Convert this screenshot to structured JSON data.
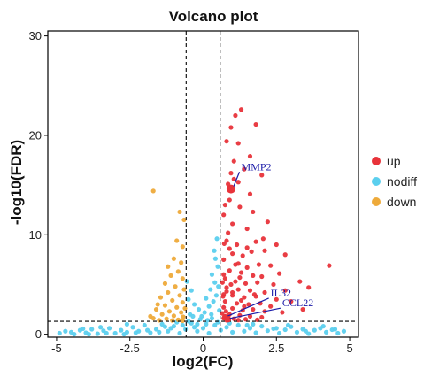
{
  "chart_data": {
    "type": "scatter",
    "title": "Volcano plot",
    "xlabel": "log2(FC)",
    "ylabel": "-log10(FDR)",
    "xlim": [
      -5.3,
      5.3
    ],
    "ylim": [
      -0.3,
      30.5
    ],
    "x_ticks": [
      -5,
      -2.5,
      0,
      2.5,
      5
    ],
    "x_tick_labels": [
      "-5",
      "-2.5",
      "0",
      "2.5",
      "5"
    ],
    "y_ticks": [
      0,
      10,
      20,
      30
    ],
    "y_tick_labels": [
      "0",
      "10",
      "20",
      "30"
    ],
    "grid": false,
    "legend_position": "right",
    "thresholds": {
      "log2fc": [
        -0.58,
        0.58
      ],
      "neg_log10_fdr": 1.3
    },
    "colors": {
      "up": "#e8333a",
      "nodiff": "#5bcfee",
      "down": "#eeaa3a",
      "annotation": "#1a1aa8",
      "axis": "#000000"
    },
    "series": [
      {
        "name": "up",
        "color": "#e8333a",
        "points": [
          [
            1.1,
            22.0
          ],
          [
            1.3,
            22.6
          ],
          [
            0.95,
            20.8
          ],
          [
            1.8,
            21.1
          ],
          [
            0.8,
            19.4
          ],
          [
            1.2,
            19.2
          ],
          [
            1.05,
            17.4
          ],
          [
            1.6,
            17.9
          ],
          [
            0.95,
            16.2
          ],
          [
            1.4,
            16.6
          ],
          [
            0.85,
            15.1
          ],
          [
            1.2,
            15.3
          ],
          [
            2.0,
            16.0
          ],
          [
            1.6,
            14.1
          ],
          [
            0.9,
            13.5
          ],
          [
            1.25,
            12.8
          ],
          [
            1.7,
            12.3
          ],
          [
            1.0,
            11.1
          ],
          [
            0.85,
            10.2
          ],
          [
            1.5,
            10.6
          ],
          [
            2.2,
            11.3
          ],
          [
            2.05,
            9.6
          ],
          [
            0.8,
            9.4
          ],
          [
            1.15,
            9.0
          ],
          [
            1.5,
            8.7
          ],
          [
            1.8,
            9.3
          ],
          [
            2.5,
            9.0
          ],
          [
            1.0,
            8.1
          ],
          [
            1.35,
            7.9
          ],
          [
            1.65,
            8.3
          ],
          [
            2.1,
            8.4
          ],
          [
            2.8,
            8.0
          ],
          [
            0.7,
            7.5
          ],
          [
            1.2,
            7.1
          ],
          [
            1.5,
            6.7
          ],
          [
            1.9,
            7.0
          ],
          [
            2.3,
            6.9
          ],
          [
            4.3,
            6.9
          ],
          [
            0.9,
            6.4
          ],
          [
            1.3,
            6.2
          ],
          [
            1.7,
            5.9
          ],
          [
            2.0,
            5.8
          ],
          [
            2.6,
            6.1
          ],
          [
            0.75,
            5.6
          ],
          [
            1.1,
            5.3
          ],
          [
            1.45,
            5.1
          ],
          [
            1.85,
            5.2
          ],
          [
            2.4,
            5.0
          ],
          [
            3.3,
            5.3
          ],
          [
            0.8,
            4.7
          ],
          [
            1.2,
            4.5
          ],
          [
            1.6,
            4.4
          ],
          [
            2.1,
            4.2
          ],
          [
            2.8,
            4.4
          ],
          [
            3.6,
            4.7
          ],
          [
            0.7,
            4.0
          ],
          [
            1.0,
            3.9
          ],
          [
            1.4,
            3.7
          ],
          [
            1.8,
            3.8
          ],
          [
            2.5,
            3.5
          ],
          [
            3.0,
            3.3
          ],
          [
            0.75,
            3.3
          ],
          [
            1.15,
            3.1
          ],
          [
            1.55,
            3.0
          ],
          [
            1.95,
            3.1
          ],
          [
            2.3,
            2.8
          ],
          [
            0.7,
            2.7
          ],
          [
            1.0,
            2.6
          ],
          [
            1.35,
            2.4
          ],
          [
            1.7,
            2.5
          ],
          [
            2.1,
            2.3
          ],
          [
            2.7,
            2.2
          ],
          [
            3.4,
            2.5
          ],
          [
            0.65,
            2.1
          ],
          [
            0.9,
            2.0
          ],
          [
            1.25,
            1.9
          ],
          [
            1.6,
            1.8
          ],
          [
            2.0,
            1.7
          ],
          [
            0.7,
            1.6
          ],
          [
            1.05,
            1.55
          ],
          [
            1.45,
            1.5
          ],
          [
            1.85,
            1.45
          ],
          [
            0.8,
            1.4
          ],
          [
            1.2,
            1.42
          ],
          [
            0.7,
            12.0
          ],
          [
            0.75,
            13.0
          ],
          [
            1.05,
            15.6
          ],
          [
            0.9,
            8.6
          ],
          [
            1.1,
            7.0
          ],
          [
            0.95,
            5.0
          ],
          [
            1.3,
            3.4
          ],
          [
            0.68,
            3.8
          ],
          [
            0.66,
            5.2
          ],
          [
            0.7,
            6.0
          ],
          [
            0.72,
            9.1
          ],
          [
            0.8,
            4.3
          ],
          [
            0.78,
            2.3
          ],
          [
            0.85,
            1.8
          ],
          [
            1.4,
            2.8
          ],
          [
            1.0,
            4.2
          ],
          [
            1.25,
            5.7
          ],
          [
            1.75,
            4.0
          ]
        ]
      },
      {
        "name": "nodiff",
        "color": "#5bcfee",
        "points": [
          [
            -4.9,
            0.1
          ],
          [
            -4.7,
            0.3
          ],
          [
            -4.4,
            0.0
          ],
          [
            -4.2,
            0.4
          ],
          [
            -4.0,
            0.15
          ],
          [
            -3.8,
            0.5
          ],
          [
            -3.6,
            0.05
          ],
          [
            -3.4,
            0.35
          ],
          [
            -3.2,
            0.6
          ],
          [
            -3.0,
            0.1
          ],
          [
            -2.8,
            0.4
          ],
          [
            -2.6,
            0.2
          ],
          [
            -2.4,
            0.7
          ],
          [
            -2.2,
            0.3
          ],
          [
            -2.0,
            0.9
          ],
          [
            -1.8,
            0.15
          ],
          [
            -1.6,
            0.5
          ],
          [
            -1.4,
            1.0
          ],
          [
            -1.2,
            0.3
          ],
          [
            -1.0,
            0.8
          ],
          [
            -0.8,
            0.1
          ],
          [
            -0.6,
            0.5
          ],
          [
            -0.4,
            1.1
          ],
          [
            -0.2,
            0.3
          ],
          [
            0.0,
            0.6
          ],
          [
            0.2,
            0.1
          ],
          [
            0.4,
            0.9
          ],
          [
            0.6,
            0.4
          ],
          [
            0.8,
            0.7
          ],
          [
            1.0,
            0.2
          ],
          [
            1.2,
            0.9
          ],
          [
            1.4,
            0.3
          ],
          [
            1.6,
            0.6
          ],
          [
            1.8,
            0.15
          ],
          [
            2.0,
            0.8
          ],
          [
            2.2,
            0.35
          ],
          [
            2.4,
            0.55
          ],
          [
            2.6,
            0.1
          ],
          [
            2.8,
            0.45
          ],
          [
            3.0,
            0.75
          ],
          [
            3.2,
            0.2
          ],
          [
            3.4,
            0.5
          ],
          [
            3.6,
            0.05
          ],
          [
            3.8,
            0.4
          ],
          [
            4.0,
            0.6
          ],
          [
            4.2,
            0.2
          ],
          [
            4.4,
            0.45
          ],
          [
            4.6,
            0.1
          ],
          [
            4.8,
            0.3
          ],
          [
            -4.5,
            0.2
          ],
          [
            -3.9,
            0.0
          ],
          [
            -3.3,
            0.1
          ],
          [
            -2.7,
            0.0
          ],
          [
            -2.3,
            0.15
          ],
          [
            -1.9,
            0.4
          ],
          [
            -1.5,
            0.2
          ],
          [
            -1.1,
            0.6
          ],
          [
            -0.9,
            1.2
          ],
          [
            -0.7,
            0.9
          ],
          [
            -0.5,
            1.3
          ],
          [
            -0.3,
            0.7
          ],
          [
            -0.1,
            1.5
          ],
          [
            0.1,
            1.0
          ],
          [
            0.3,
            1.6
          ],
          [
            0.5,
            1.2
          ],
          [
            0.05,
            2.2
          ],
          [
            -0.15,
            2.5
          ],
          [
            0.2,
            2.8
          ],
          [
            0.35,
            3.3
          ],
          [
            -0.3,
            3.0
          ],
          [
            0.45,
            3.9
          ],
          [
            0.25,
            4.5
          ],
          [
            0.4,
            5.2
          ],
          [
            0.3,
            6.0
          ],
          [
            0.5,
            6.8
          ],
          [
            0.42,
            7.6
          ],
          [
            0.38,
            8.4
          ],
          [
            0.47,
            9.6
          ],
          [
            -0.45,
            2.0
          ],
          [
            -0.5,
            3.5
          ],
          [
            -0.4,
            4.4
          ],
          [
            -0.55,
            5.3
          ],
          [
            -0.35,
            1.8
          ],
          [
            0.55,
            2.4
          ],
          [
            0.15,
            1.4
          ],
          [
            -0.05,
            1.8
          ],
          [
            0.1,
            3.6
          ],
          [
            0.52,
            4.8
          ],
          [
            0.28,
            2.0
          ],
          [
            -0.2,
            1.0
          ],
          [
            1.5,
            0.9
          ],
          [
            2.5,
            0.6
          ],
          [
            3.5,
            0.3
          ],
          [
            4.5,
            0.5
          ],
          [
            -2.6,
            1.0
          ],
          [
            -1.3,
            0.75
          ],
          [
            0.9,
            1.1
          ],
          [
            1.7,
            1.0
          ],
          [
            2.9,
            0.9
          ],
          [
            4.1,
            0.8
          ],
          [
            -4.1,
            0.55
          ],
          [
            -3.5,
            0.7
          ]
        ]
      },
      {
        "name": "down",
        "color": "#eeaa3a",
        "points": [
          [
            -1.7,
            14.4
          ],
          [
            -0.8,
            12.3
          ],
          [
            -0.65,
            11.5
          ],
          [
            -0.9,
            9.4
          ],
          [
            -0.7,
            8.8
          ],
          [
            -1.0,
            7.6
          ],
          [
            -0.75,
            7.2
          ],
          [
            -1.2,
            6.8
          ],
          [
            -0.85,
            6.3
          ],
          [
            -1.1,
            5.9
          ],
          [
            -0.7,
            5.6
          ],
          [
            -1.3,
            5.1
          ],
          [
            -0.95,
            4.8
          ],
          [
            -0.65,
            4.5
          ],
          [
            -1.2,
            4.2
          ],
          [
            -0.8,
            3.9
          ],
          [
            -1.45,
            3.7
          ],
          [
            -1.05,
            3.4
          ],
          [
            -0.7,
            3.2
          ],
          [
            -1.3,
            2.9
          ],
          [
            -0.9,
            2.7
          ],
          [
            -1.6,
            2.5
          ],
          [
            -1.15,
            2.3
          ],
          [
            -0.75,
            2.2
          ],
          [
            -1.4,
            2.0
          ],
          [
            -1.0,
            1.85
          ],
          [
            -0.68,
            1.75
          ],
          [
            -1.7,
            1.6
          ],
          [
            -1.25,
            1.55
          ],
          [
            -0.85,
            1.45
          ],
          [
            -1.5,
            1.4
          ],
          [
            -1.05,
            1.38
          ],
          [
            -0.7,
            1.35
          ],
          [
            -1.8,
            1.8
          ],
          [
            -1.55,
            3.0
          ],
          [
            -0.62,
            2.6
          ]
        ]
      }
    ],
    "annotations": [
      {
        "label": "MMP2",
        "x": 0.95,
        "y": 14.6,
        "text_x": 1.3,
        "text_y": 16.5,
        "size": "large"
      },
      {
        "label": "IL32",
        "x": 0.75,
        "y": 1.7,
        "text_x": 2.3,
        "text_y": 3.8,
        "size": "normal"
      },
      {
        "label": "CCL22",
        "x": 0.85,
        "y": 1.5,
        "text_x": 2.7,
        "text_y": 2.8,
        "size": "normal"
      }
    ],
    "legend": [
      {
        "label": "up",
        "color": "#e8333a"
      },
      {
        "label": "nodiff",
        "color": "#5bcfee"
      },
      {
        "label": "down",
        "color": "#eeaa3a"
      }
    ]
  }
}
